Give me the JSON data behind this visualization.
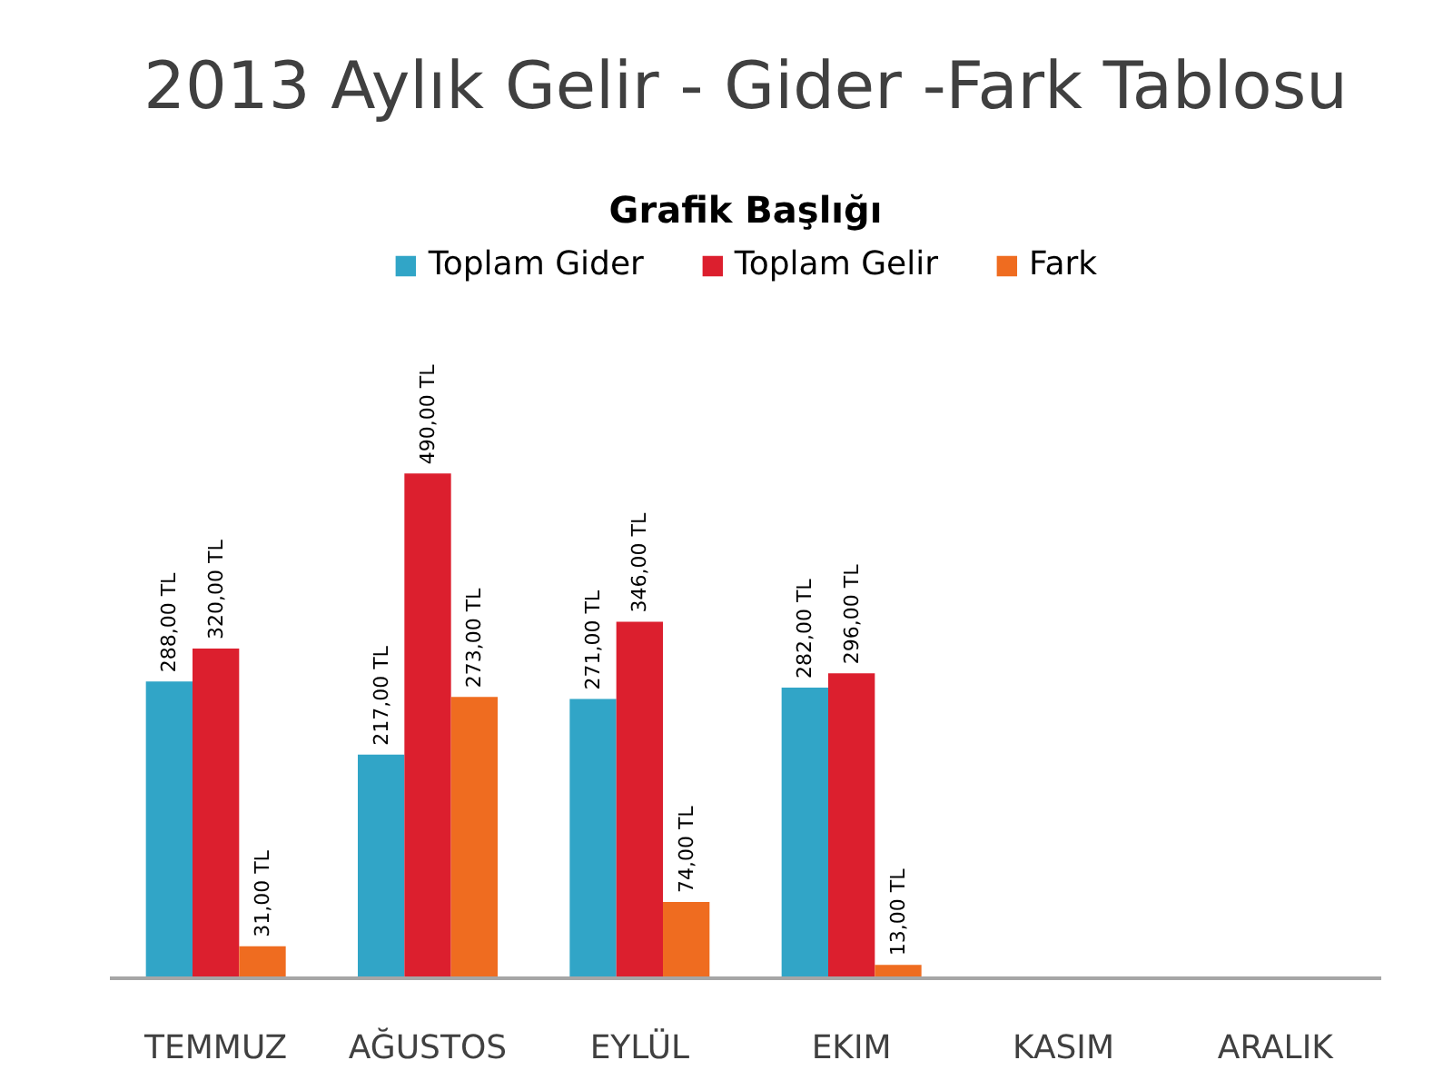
{
  "chart_data": {
    "type": "bar",
    "title": "2013 Aylık Gelir - Gider -Fark Tablosu",
    "subtitle": "Grafik Başlığı",
    "categories": [
      "TEMMUZ",
      "AĞUSTOS",
      "EYLÜL",
      "EKIM",
      "KASIM",
      "ARALIK"
    ],
    "series": [
      {
        "name": "Toplam Gider",
        "color": "#31a5c7",
        "values": [
          288,
          217,
          271,
          282,
          null,
          null
        ],
        "value_labels": [
          "288,00 TL",
          "217,00 TL",
          "271,00 TL",
          "282,00 TL",
          null,
          null
        ]
      },
      {
        "name": "Toplam Gelir",
        "color": "#dc1f2e",
        "values": [
          320,
          490,
          346,
          296,
          null,
          null
        ],
        "value_labels": [
          "320,00 TL",
          "490,00 TL",
          "346,00 TL",
          "296,00 TL",
          null,
          null
        ]
      },
      {
        "name": "Fark",
        "color": "#ef6c20",
        "values": [
          31,
          273,
          74,
          13,
          null,
          null
        ],
        "value_labels": [
          "31,00 TL",
          "273,00 TL",
          "74,00 TL",
          "13,00 TL",
          null,
          null
        ]
      }
    ],
    "legend": "top",
    "tick_labels": "x"
  }
}
